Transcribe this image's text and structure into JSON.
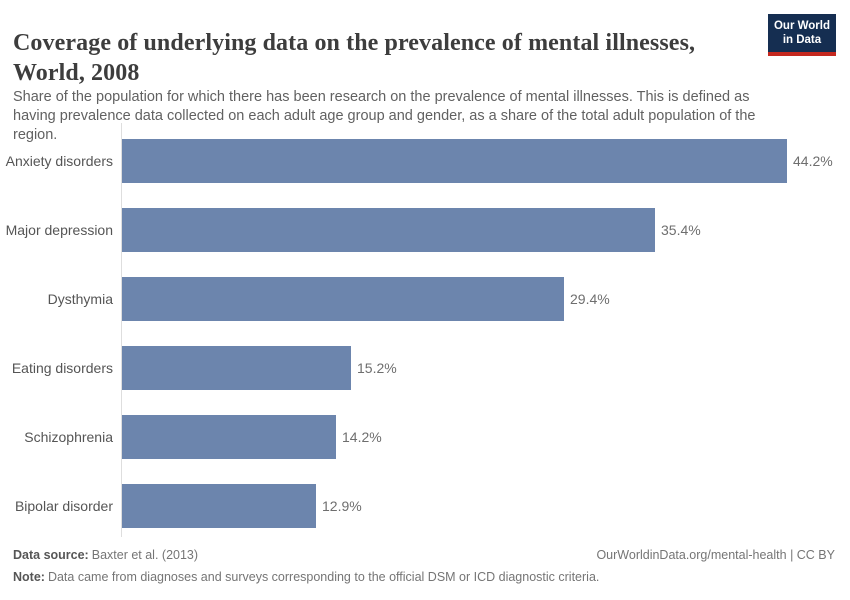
{
  "header": {
    "title_line1": "Coverage of underlying data on the prevalence of mental illnesses,",
    "title_line2": "World, 2008",
    "subtitle": "Share of the population for which there has been research on the prevalence of mental illnesses. This is defined as having prevalence data collected on each adult age group and gender, as a share of the total adult population of the region.",
    "logo": {
      "line1": "Our World",
      "line2": "in Data"
    }
  },
  "chart_data": {
    "type": "bar",
    "orientation": "horizontal",
    "title": "Coverage of underlying data on the prevalence of mental illnesses, World, 2008",
    "categories": [
      "Anxiety disorders",
      "Major depression",
      "Dysthymia",
      "Eating disorders",
      "Schizophrenia",
      "Bipolar disorder"
    ],
    "values": [
      44.2,
      35.4,
      29.4,
      15.2,
      14.2,
      12.9
    ],
    "value_labels": [
      "44.2%",
      "35.4%",
      "29.4%",
      "15.2%",
      "14.2%",
      "12.9%"
    ],
    "xlabel": "",
    "ylabel": "",
    "xlim": [
      0,
      45
    ],
    "grid": false,
    "legend": false,
    "bar_color": "#6c85ad",
    "unit": "%"
  },
  "footer": {
    "source_label": "Data source:",
    "source_text": "Baxter et al. (2013)",
    "note_label": "Note:",
    "note_text": "Data came from diagnoses and surveys corresponding to the official DSM or ICD diagnostic criteria.",
    "link_text": "OurWorldinData.org/mental-health | CC BY"
  }
}
